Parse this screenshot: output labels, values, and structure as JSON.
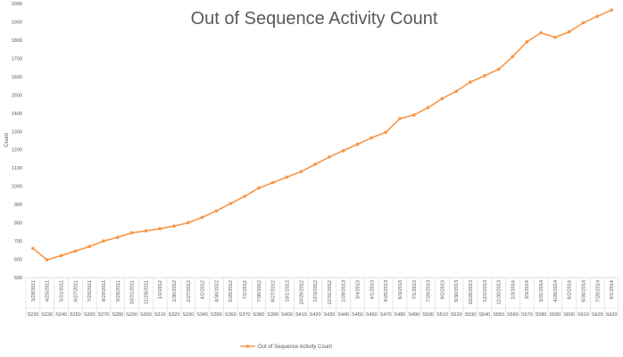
{
  "chart_data": {
    "type": "line",
    "title": "Out of Sequence Activity Count",
    "ylabel": "Count",
    "xlabel": "",
    "ylim": [
      500,
      2000
    ],
    "ytick_step": 100,
    "grid": false,
    "legend_position": "bottom",
    "color": "#F79646",
    "categories": [
      {
        "date": "3/28/2011",
        "code": "S220"
      },
      {
        "date": "4/25/2011",
        "code": "S230"
      },
      {
        "date": "5/31/2011",
        "code": "S240"
      },
      {
        "date": "6/27/2011",
        "code": "S250"
      },
      {
        "date": "7/25/2011",
        "code": "S260"
      },
      {
        "date": "8/29/2011",
        "code": "S270"
      },
      {
        "date": "9/26/2011",
        "code": "S280"
      },
      {
        "date": "10/31/2011",
        "code": "S290"
      },
      {
        "date": "11/28/2011",
        "code": "S300"
      },
      {
        "date": "1/2/2012",
        "code": "S310"
      },
      {
        "date": "1/30/2012",
        "code": "S320"
      },
      {
        "date": "2/27/2012",
        "code": "S330"
      },
      {
        "date": "4/2/2012",
        "code": "S340"
      },
      {
        "date": "4/30/2012",
        "code": "S350"
      },
      {
        "date": "5/28/2012",
        "code": "S360"
      },
      {
        "date": "7/2/2012",
        "code": "S370"
      },
      {
        "date": "7/30/2012",
        "code": "S380"
      },
      {
        "date": "8/27/2012",
        "code": "S390"
      },
      {
        "date": "10/1/2012",
        "code": "S400"
      },
      {
        "date": "10/29/2012",
        "code": "S410"
      },
      {
        "date": "12/3/2012",
        "code": "S420"
      },
      {
        "date": "12/31/2012",
        "code": "S430"
      },
      {
        "date": "1/28/2013",
        "code": "S440"
      },
      {
        "date": "3/4/2013",
        "code": "S450"
      },
      {
        "date": "4/1/2013",
        "code": "S460"
      },
      {
        "date": "4/29/2013",
        "code": "S470"
      },
      {
        "date": "6/3/2013",
        "code": "S480"
      },
      {
        "date": "7/1/2013",
        "code": "S490"
      },
      {
        "date": "7/29/2013",
        "code": "S500"
      },
      {
        "date": "9/2/2013",
        "code": "S510"
      },
      {
        "date": "9/30/2013",
        "code": "S520"
      },
      {
        "date": "10/28/2013",
        "code": "S530"
      },
      {
        "date": "12/2/2013",
        "code": "S540"
      },
      {
        "date": "12/30/2013",
        "code": "S550"
      },
      {
        "date": "2/3/2014",
        "code": "S560"
      },
      {
        "date": "3/3/2014",
        "code": "S570"
      },
      {
        "date": "3/31/2014",
        "code": "S580"
      },
      {
        "date": "4/28/2014",
        "code": "S590"
      },
      {
        "date": "6/2/2014",
        "code": "S600"
      },
      {
        "date": "6/30/2014",
        "code": "S610"
      },
      {
        "date": "7/28/2014",
        "code": "S620"
      },
      {
        "date": "9/1/2014",
        "code": "S630"
      }
    ],
    "series": [
      {
        "name": "Out of Sequence Activity Count",
        "values": [
          660,
          597,
          620,
          645,
          670,
          700,
          720,
          745,
          755,
          768,
          782,
          800,
          830,
          865,
          905,
          945,
          990,
          1020,
          1050,
          1080,
          1120,
          1160,
          1195,
          1230,
          1265,
          1295,
          1370,
          1390,
          1430,
          1480,
          1520,
          1570,
          1605,
          1640,
          1710,
          1790,
          1840,
          1815,
          1845,
          1895,
          1930,
          1965
        ]
      }
    ]
  }
}
